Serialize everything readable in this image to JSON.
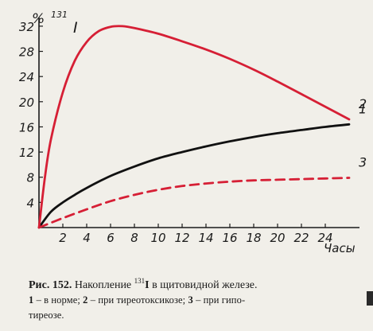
{
  "chart_data": {
    "type": "line",
    "ylabel_prefix": "%",
    "ylabel_sup": "131",
    "ylabel_element": "I",
    "xlabel": "Часы",
    "xlim": [
      0,
      27
    ],
    "ylim": [
      0,
      33
    ],
    "x_ticks": [
      2,
      4,
      6,
      8,
      10,
      12,
      14,
      16,
      18,
      20,
      22,
      24
    ],
    "y_ticks": [
      4,
      8,
      12,
      16,
      20,
      24,
      28,
      32
    ],
    "series": [
      {
        "name": "1",
        "color": "#111111",
        "dashed": false,
        "x": [
          0,
          1,
          2,
          3,
          4,
          6,
          8,
          10,
          12,
          14,
          16,
          18,
          20,
          22,
          24,
          26
        ],
        "y": [
          0,
          2.5,
          4.0,
          5.2,
          6.3,
          8.2,
          9.7,
          11.0,
          12.0,
          12.9,
          13.7,
          14.4,
          15.0,
          15.5,
          16.0,
          16.4
        ]
      },
      {
        "name": "2",
        "color": "#d61f35",
        "dashed": false,
        "x": [
          0,
          0.5,
          1,
          2,
          3,
          4,
          5,
          6,
          7,
          8,
          10,
          12,
          14,
          16,
          18,
          20,
          22,
          24,
          26
        ],
        "y": [
          0,
          8,
          14,
          21.5,
          26.5,
          29.5,
          31.2,
          31.9,
          32.0,
          31.7,
          30.8,
          29.6,
          28.3,
          26.8,
          25.1,
          23.2,
          21.2,
          19.2,
          17.2
        ]
      },
      {
        "name": "3",
        "color": "#d61f35",
        "dashed": true,
        "x": [
          0,
          2,
          4,
          6,
          8,
          10,
          12,
          14,
          16,
          18,
          20,
          22,
          24,
          26
        ],
        "y": [
          0,
          1.5,
          2.9,
          4.2,
          5.2,
          6.0,
          6.6,
          7.0,
          7.3,
          7.5,
          7.6,
          7.7,
          7.8,
          7.9
        ]
      }
    ]
  },
  "caption": {
    "fig_label": "Рис. 152.",
    "title_pre": "Накопление",
    "title_sup": "131",
    "title_elem": "I",
    "title_post": "в щитовидной железе.",
    "l1_num": "1",
    "l1_text": "– в норме;",
    "l2_num": "2",
    "l2_text": "– при тиреотоксикозе;",
    "l3_num": "3",
    "l3_text": "– при гипо-",
    "line3": "тиреозе."
  }
}
